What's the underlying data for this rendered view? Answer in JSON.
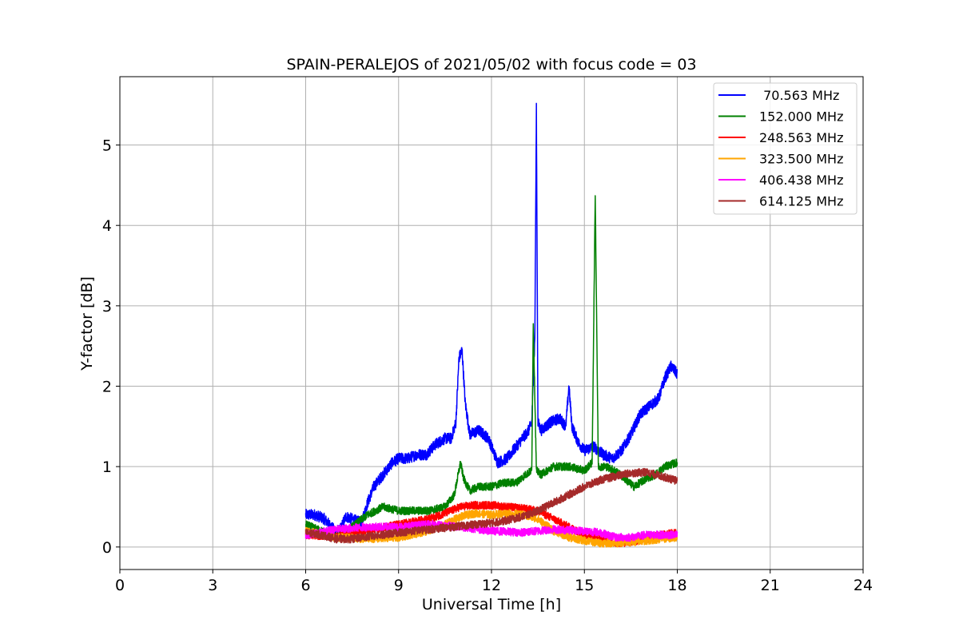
{
  "chart_data": {
    "type": "line",
    "title": "SPAIN-PERALEJOS of 2021/05/02 with focus code = 03",
    "xlabel": "Universal Time [h]",
    "ylabel": "Y-factor [dB]",
    "xlim": [
      0,
      24
    ],
    "ylim": [
      -0.28,
      5.85
    ],
    "xticks": [
      0,
      3,
      6,
      9,
      12,
      15,
      18,
      21,
      24
    ],
    "yticks": [
      0,
      1,
      2,
      3,
      4,
      5
    ],
    "grid": true,
    "legend_position": "top-right",
    "series": [
      {
        "name": " 70.563 MHz",
        "color": "#0000ff",
        "noise": 0.07,
        "x": [
          6.0,
          6.3,
          6.6,
          6.9,
          7.1,
          7.3,
          7.6,
          7.8,
          8.0,
          8.2,
          8.5,
          8.8,
          9.0,
          9.3,
          9.6,
          9.9,
          10.2,
          10.5,
          10.7,
          10.85,
          10.95,
          11.05,
          11.15,
          11.3,
          11.6,
          11.9,
          12.2,
          12.5,
          12.8,
          13.0,
          13.2,
          13.3,
          13.4,
          13.45,
          13.5,
          13.6,
          13.9,
          14.2,
          14.4,
          14.5,
          14.6,
          14.8,
          15.0,
          15.3,
          15.6,
          15.9,
          16.2,
          16.5,
          16.8,
          17.1,
          17.4,
          17.6,
          17.8,
          18.0
        ],
        "y": [
          0.4,
          0.4,
          0.35,
          0.22,
          0.2,
          0.38,
          0.33,
          0.3,
          0.55,
          0.75,
          0.9,
          1.05,
          1.1,
          1.1,
          1.15,
          1.15,
          1.28,
          1.35,
          1.35,
          1.55,
          2.35,
          2.45,
          1.8,
          1.4,
          1.45,
          1.35,
          1.05,
          1.1,
          1.25,
          1.35,
          1.45,
          1.55,
          2.6,
          5.45,
          1.55,
          1.45,
          1.55,
          1.6,
          1.5,
          2.0,
          1.5,
          1.3,
          1.2,
          1.25,
          1.15,
          1.1,
          1.2,
          1.4,
          1.65,
          1.75,
          1.85,
          2.1,
          2.25,
          2.15
        ]
      },
      {
        "name": "152.000 MHz",
        "color": "#008000",
        "noise": 0.05,
        "x": [
          6.0,
          6.5,
          7.0,
          7.5,
          8.0,
          8.5,
          9.0,
          9.5,
          10.0,
          10.5,
          10.8,
          11.0,
          11.1,
          11.3,
          11.6,
          12.0,
          12.4,
          12.8,
          13.1,
          13.3,
          13.35,
          13.45,
          13.6,
          14.0,
          14.5,
          15.0,
          15.25,
          15.35,
          15.45,
          15.7,
          16.0,
          16.3,
          16.6,
          17.0,
          17.3,
          17.6,
          18.0
        ],
        "y": [
          0.28,
          0.2,
          0.12,
          0.25,
          0.4,
          0.5,
          0.45,
          0.45,
          0.45,
          0.5,
          0.65,
          1.05,
          0.85,
          0.7,
          0.75,
          0.75,
          0.8,
          0.8,
          0.9,
          0.95,
          2.8,
          0.95,
          0.9,
          1.0,
          1.0,
          0.95,
          1.05,
          4.4,
          1.0,
          1.0,
          0.95,
          0.85,
          0.75,
          0.85,
          0.9,
          1.0,
          1.05
        ]
      },
      {
        "name": "248.563 MHz",
        "color": "#ff0000",
        "noise": 0.05,
        "x": [
          6.0,
          7.0,
          8.0,
          9.0,
          10.0,
          10.5,
          11.0,
          11.5,
          12.0,
          12.5,
          13.0,
          13.5,
          14.0,
          14.5,
          15.0,
          15.5,
          16.0,
          16.5,
          17.0,
          17.5,
          18.0
        ],
        "y": [
          0.15,
          0.13,
          0.2,
          0.28,
          0.35,
          0.42,
          0.5,
          0.52,
          0.52,
          0.5,
          0.48,
          0.45,
          0.35,
          0.25,
          0.15,
          0.1,
          0.05,
          0.06,
          0.1,
          0.15,
          0.18
        ]
      },
      {
        "name": "323.500 MHz",
        "color": "#ffa500",
        "noise": 0.05,
        "x": [
          6.0,
          7.0,
          8.0,
          9.0,
          10.0,
          10.5,
          11.0,
          11.5,
          12.0,
          12.5,
          13.0,
          13.5,
          14.0,
          14.5,
          15.0,
          15.5,
          16.0,
          16.5,
          17.0,
          17.5,
          18.0
        ],
        "y": [
          0.2,
          0.12,
          0.1,
          0.12,
          0.2,
          0.28,
          0.38,
          0.42,
          0.4,
          0.42,
          0.4,
          0.35,
          0.2,
          0.12,
          0.08,
          0.05,
          0.05,
          0.06,
          0.08,
          0.1,
          0.12
        ]
      },
      {
        "name": "406.438 MHz",
        "color": "#ff00ff",
        "noise": 0.05,
        "x": [
          6.0,
          7.0,
          8.0,
          9.0,
          10.0,
          11.0,
          12.0,
          13.0,
          14.0,
          15.0,
          15.5,
          16.0,
          16.5,
          17.0,
          17.5,
          18.0
        ],
        "y": [
          0.15,
          0.22,
          0.25,
          0.25,
          0.28,
          0.25,
          0.2,
          0.18,
          0.22,
          0.2,
          0.18,
          0.12,
          0.12,
          0.15,
          0.15,
          0.15
        ]
      },
      {
        "name": "614.125 MHz",
        "color": "#a52a2a",
        "noise": 0.05,
        "x": [
          6.0,
          6.5,
          7.0,
          7.5,
          8.0,
          8.5,
          9.0,
          9.5,
          10.0,
          10.5,
          11.0,
          11.5,
          12.0,
          12.5,
          13.0,
          13.5,
          14.0,
          14.5,
          15.0,
          15.5,
          16.0,
          16.5,
          17.0,
          17.5,
          18.0
        ],
        "y": [
          0.18,
          0.15,
          0.1,
          0.1,
          0.13,
          0.15,
          0.18,
          0.2,
          0.22,
          0.24,
          0.26,
          0.28,
          0.3,
          0.33,
          0.38,
          0.45,
          0.55,
          0.65,
          0.75,
          0.83,
          0.88,
          0.92,
          0.93,
          0.88,
          0.82
        ]
      }
    ]
  }
}
